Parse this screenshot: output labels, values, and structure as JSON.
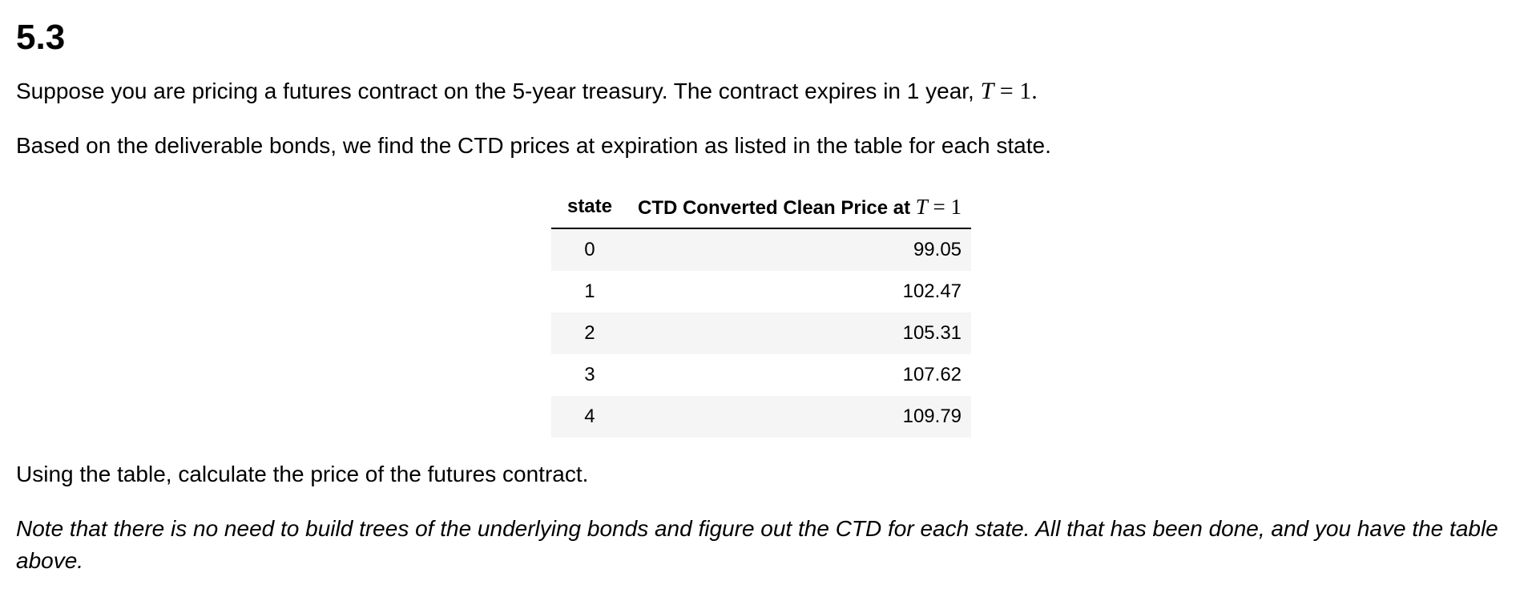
{
  "heading": "5.3",
  "paragraph1": {
    "text": "Suppose you are pricing a futures contract on the 5-year treasury. The contract expires in 1 year, ",
    "math_var": "T",
    "math_rest": " = 1",
    "end": "."
  },
  "paragraph2": "Based on the deliverable bonds, we find the CTD prices at expiration as listed in the table for each state.",
  "table": {
    "header_state": "state",
    "header_price_text": "CTD Converted Clean Price at ",
    "header_price_math_var": "T",
    "header_price_math_rest": " = 1",
    "rows": [
      {
        "state": "0",
        "price": "99.05"
      },
      {
        "state": "1",
        "price": "102.47"
      },
      {
        "state": "2",
        "price": "105.31"
      },
      {
        "state": "3",
        "price": "107.62"
      },
      {
        "state": "4",
        "price": "109.79"
      }
    ]
  },
  "paragraph3": "Using the table, calculate the price of the futures contract.",
  "paragraph4": "Note that there is no need to build trees of the underlying bonds and figure out the CTD for each state. All that has been done, and you have the table above."
}
